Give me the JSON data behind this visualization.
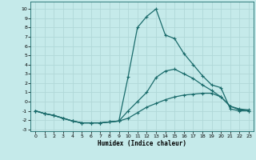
{
  "xlabel": "Humidex (Indice chaleur)",
  "bg_color": "#c5eaea",
  "grid_color": "#b0d8d8",
  "line_color": "#1a6b6b",
  "xlim": [
    -0.5,
    23.5
  ],
  "ylim": [
    -3.2,
    10.8
  ],
  "xticks": [
    0,
    1,
    2,
    3,
    4,
    5,
    6,
    7,
    8,
    9,
    10,
    11,
    12,
    13,
    14,
    15,
    16,
    17,
    18,
    19,
    20,
    21,
    22,
    23
  ],
  "yticks": [
    -3,
    -2,
    -1,
    0,
    1,
    2,
    3,
    4,
    5,
    6,
    7,
    8,
    9,
    10
  ],
  "curve_main_x": [
    0,
    1,
    2,
    3,
    4,
    5,
    6,
    7,
    8,
    9,
    10,
    11,
    12,
    13,
    14,
    15,
    16,
    17,
    18,
    19,
    20,
    21,
    22,
    23
  ],
  "curve_main_y": [
    -1.0,
    -1.3,
    -1.5,
    -1.8,
    -2.1,
    -2.3,
    -2.3,
    -2.3,
    -2.2,
    -2.1,
    2.7,
    8.0,
    9.2,
    10.0,
    7.2,
    6.8,
    5.2,
    4.0,
    2.8,
    1.8,
    1.5,
    -0.8,
    -1.0,
    -1.0
  ],
  "curve_mid_x": [
    0,
    1,
    2,
    3,
    4,
    5,
    6,
    7,
    8,
    9,
    10,
    11,
    12,
    13,
    14,
    15,
    16,
    17,
    18,
    19,
    20,
    21,
    22,
    23
  ],
  "curve_mid_y": [
    -1.0,
    -1.3,
    -1.5,
    -1.8,
    -2.1,
    -2.3,
    -2.3,
    -2.3,
    -2.2,
    -2.1,
    -1.0,
    0.0,
    1.0,
    2.6,
    3.3,
    3.5,
    3.0,
    2.5,
    1.8,
    1.2,
    0.5,
    -0.5,
    -0.8,
    -0.9
  ],
  "curve_low_x": [
    0,
    1,
    2,
    3,
    4,
    5,
    6,
    7,
    8,
    9,
    10,
    11,
    12,
    13,
    14,
    15,
    16,
    17,
    18,
    19,
    20,
    21,
    22,
    23
  ],
  "curve_low_y": [
    -1.0,
    -1.3,
    -1.5,
    -1.8,
    -2.1,
    -2.3,
    -2.3,
    -2.3,
    -2.2,
    -2.1,
    -1.8,
    -1.2,
    -0.6,
    -0.2,
    0.2,
    0.5,
    0.7,
    0.8,
    0.9,
    0.9,
    0.5,
    -0.5,
    -0.9,
    -1.0
  ]
}
